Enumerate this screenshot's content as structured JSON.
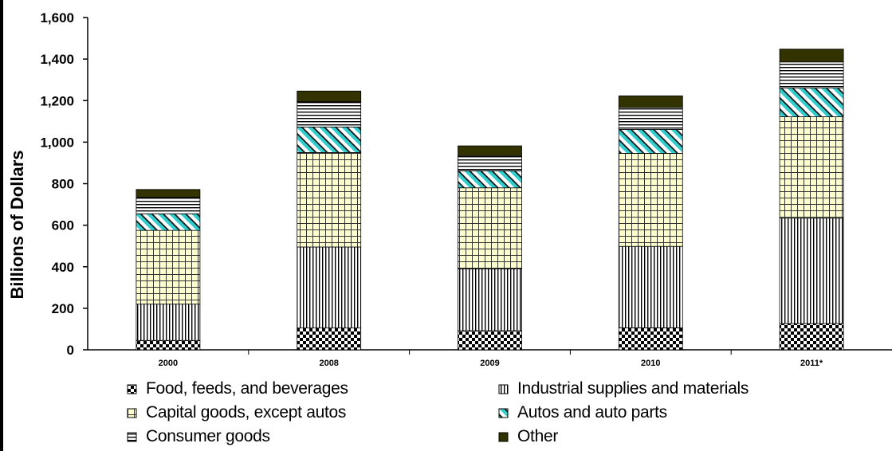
{
  "chart_data": {
    "type": "bar",
    "stacked": true,
    "categories": [
      "2000",
      "2008",
      "2009",
      "2010",
      "2011*"
    ],
    "series": [
      {
        "name": "Food, feeds, and beverages",
        "values": [
          45,
          105,
          92,
          106,
          126
        ],
        "pattern": "checker",
        "color": "#000000"
      },
      {
        "name": "Industrial supplies and materials",
        "values": [
          175,
          390,
          298,
          392,
          508
        ],
        "pattern": "vertical",
        "color": "#000000"
      },
      {
        "name": "Capital goods, except autos",
        "values": [
          355,
          455,
          390,
          448,
          488
        ],
        "pattern": "grid",
        "color": "#ffffcc"
      },
      {
        "name": "Autos and auto parts",
        "values": [
          80,
          123,
          82,
          115,
          138
        ],
        "pattern": "diagonal",
        "color": "#33cccc"
      },
      {
        "name": "Consumer goods",
        "values": [
          80,
          122,
          73,
          106,
          126
        ],
        "pattern": "horizontal",
        "color": "#000000"
      },
      {
        "name": "Other",
        "values": [
          37,
          51,
          47,
          56,
          62
        ],
        "pattern": "solid",
        "color": "#333300"
      }
    ],
    "xlabel": "",
    "ylabel": "Billions of Dollars",
    "ylim": [
      0,
      1600
    ],
    "yticks": [
      "0",
      "200",
      "400",
      "600",
      "800",
      "1,000",
      "1,200",
      "1,400",
      "1,600"
    ],
    "grid": false,
    "legend": "bottom"
  }
}
